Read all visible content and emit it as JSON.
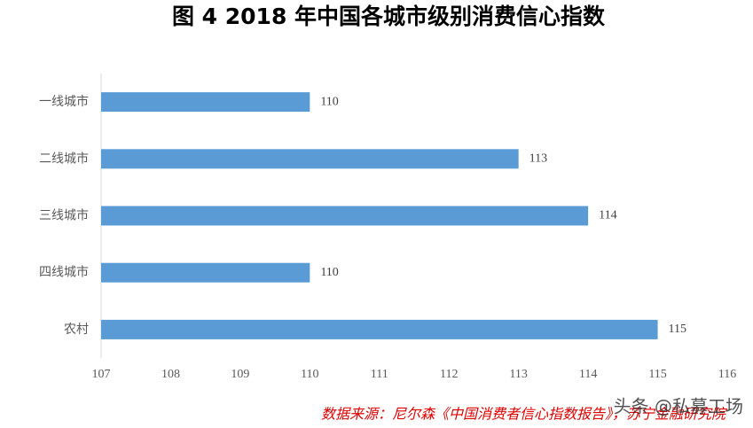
{
  "chart_data": {
    "type": "bar",
    "orientation": "horizontal",
    "title": "图 4   2018 年中国各城市级别消费信心指数",
    "categories": [
      "一线城市",
      "二线城市",
      "三线城市",
      "四线城市",
      "农村"
    ],
    "values": [
      110,
      113,
      114,
      110,
      115
    ],
    "color": "#5b9bd5",
    "xlim": [
      107,
      116
    ],
    "xticks": [
      107,
      108,
      109,
      110,
      111,
      112,
      113,
      114,
      115,
      116
    ],
    "grid": false,
    "source": "数据来源：尼尔森《中国消费者信心指数报告》，苏宁金融研究院",
    "watermark": "头条 @私募工场"
  }
}
